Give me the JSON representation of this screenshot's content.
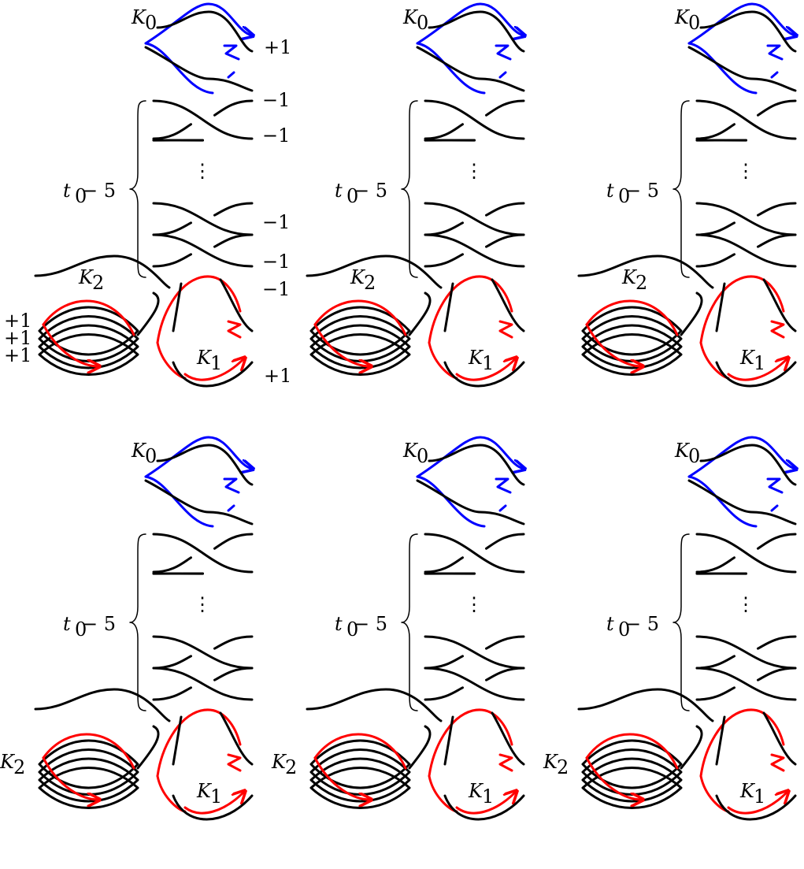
{
  "colors": {
    "black": "#000000",
    "blue": "#0000ff",
    "red": "#ff0000"
  },
  "labels": {
    "k0": "K",
    "k0_sub": "0",
    "k1": "K",
    "k1_sub": "1",
    "k2": "K",
    "k2_sub": "2",
    "brace_t": "t",
    "brace_sub": "0",
    "brace_rest": " − 5",
    "dots": "⋮"
  },
  "framings_first_panel": {
    "k0_framing": "+1",
    "twists": [
      "−1",
      "−1",
      "−1",
      "−1",
      "−1"
    ],
    "k1_framing": "+1",
    "k2_framings": [
      "+1",
      "+1",
      "+1"
    ]
  },
  "panels": [
    {
      "id": "p1",
      "row": 0,
      "col": 0,
      "show_framings": true,
      "k2_label_side": "top"
    },
    {
      "id": "p2",
      "row": 0,
      "col": 1,
      "show_framings": false,
      "k2_label_side": "top"
    },
    {
      "id": "p3",
      "row": 0,
      "col": 2,
      "show_framings": false,
      "k2_label_side": "top"
    },
    {
      "id": "p4",
      "row": 1,
      "col": 0,
      "show_framings": false,
      "k2_label_side": "left"
    },
    {
      "id": "p5",
      "row": 1,
      "col": 1,
      "show_framings": false,
      "k2_label_side": "left"
    },
    {
      "id": "p6",
      "row": 1,
      "col": 2,
      "show_framings": false,
      "k2_label_side": "left"
    }
  ]
}
